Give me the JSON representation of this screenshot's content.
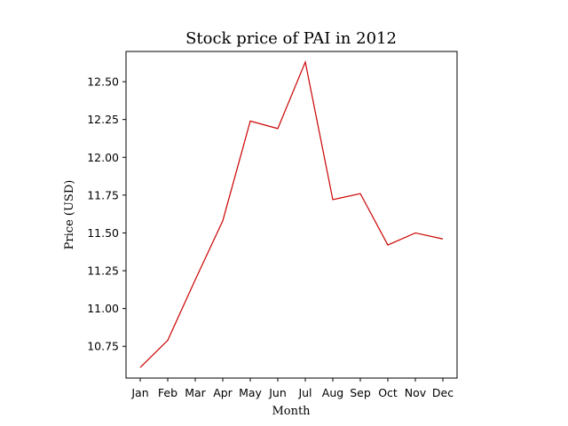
{
  "chart_data": {
    "type": "line",
    "title": "Stock price of PAI in 2012",
    "xlabel": "Month",
    "ylabel": "Price (USD)",
    "categories": [
      "Jan",
      "Feb",
      "Mar",
      "Apr",
      "May",
      "Jun",
      "Jul",
      "Aug",
      "Sep",
      "Oct",
      "Nov",
      "Dec"
    ],
    "series": [
      {
        "color": "#cc0000",
        "values": [
          10.61,
          10.79,
          11.19,
          11.58,
          12.24,
          12.19,
          12.63,
          11.72,
          11.76,
          11.42,
          11.5,
          11.46
        ]
      }
    ],
    "yticks": [
      "10.75",
      "11.00",
      "11.25",
      "11.50",
      "11.75",
      "12.00",
      "12.25",
      "12.50"
    ],
    "ylim": [
      10.54,
      12.7
    ],
    "grid": false,
    "legend": "none"
  }
}
